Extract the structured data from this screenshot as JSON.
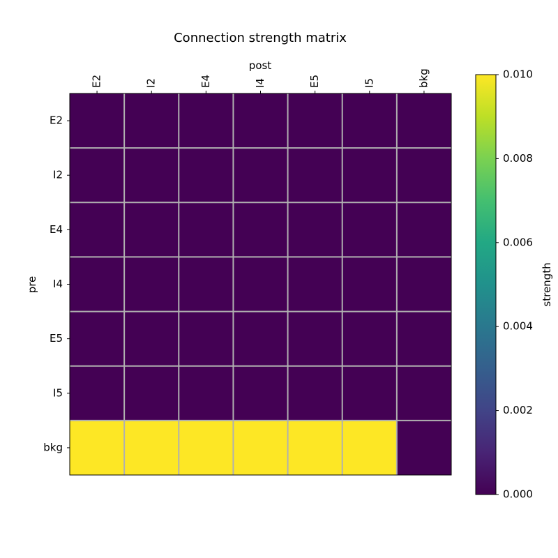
{
  "chart_data": {
    "type": "heatmap",
    "title": "Connection strength matrix",
    "xlabel": "post",
    "ylabel": "pre",
    "x_categories": [
      "E2",
      "I2",
      "E4",
      "I4",
      "E5",
      "I5",
      "bkg"
    ],
    "y_categories": [
      "E2",
      "I2",
      "E4",
      "I4",
      "E5",
      "I5",
      "bkg"
    ],
    "values": [
      [
        0,
        0,
        0,
        0,
        0,
        0,
        0
      ],
      [
        0,
        0,
        0,
        0,
        0,
        0,
        0
      ],
      [
        0,
        0,
        0,
        0,
        0,
        0,
        0
      ],
      [
        0,
        0,
        0,
        0,
        0,
        0,
        0
      ],
      [
        0,
        0,
        0,
        0,
        0,
        0,
        0
      ],
      [
        0,
        0,
        0,
        0,
        0,
        0,
        0
      ],
      [
        0.01,
        0.01,
        0.01,
        0.01,
        0.01,
        0.01,
        0
      ]
    ],
    "colorbar": {
      "label": "strength",
      "range": [
        0.0,
        0.01
      ],
      "ticks": [
        "0.000",
        "0.002",
        "0.004",
        "0.006",
        "0.008",
        "0.010"
      ],
      "tick_values": [
        0.0,
        0.002,
        0.004,
        0.006,
        0.008,
        0.01
      ],
      "colormap": "viridis"
    },
    "grid": true,
    "grid_color": "#b0b0b0",
    "x_tick_position": "top"
  }
}
